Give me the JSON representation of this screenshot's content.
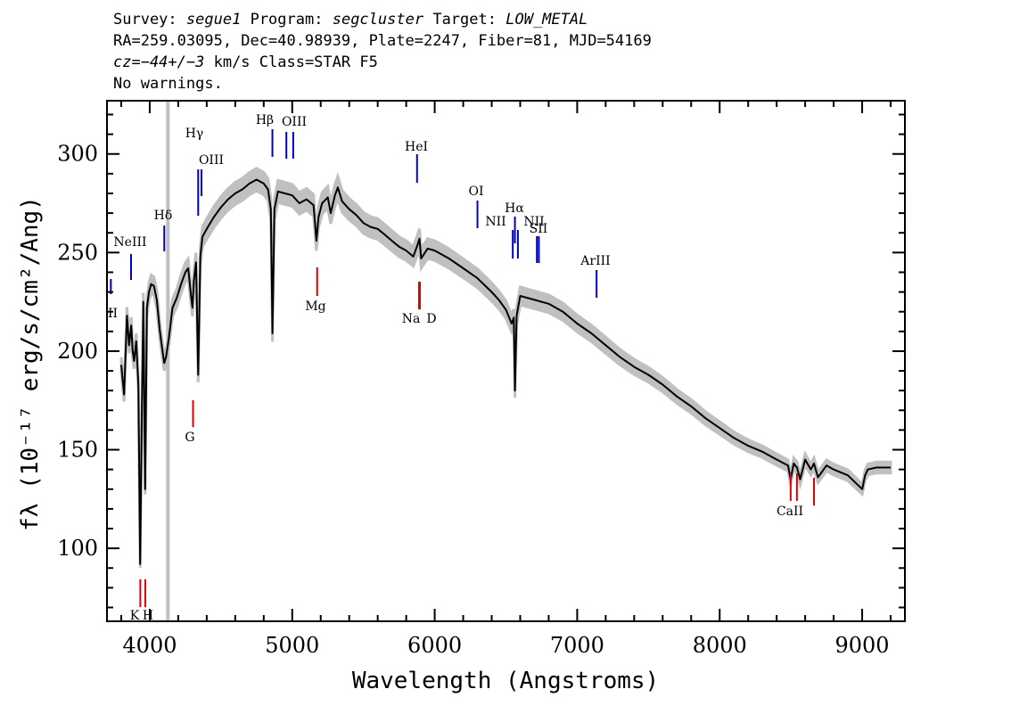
{
  "header": {
    "survey_label": "Survey:",
    "survey": "segue1",
    "program_label": "Program:",
    "program": "segcluster",
    "target_label": "Target:",
    "target": "LOW_METAL",
    "line2": "RA=259.03095, Dec=40.98939, Plate=2247, Fiber=81, MJD=54169",
    "cz": "cz=−44+/−3",
    "cz_rest": " km/s Class=STAR F5",
    "line4": "No warnings."
  },
  "chart_data": {
    "type": "line",
    "xlabel": "Wavelength (Angstroms)",
    "ylabel": "fλ (10⁻¹⁷ erg/s/cm²/Ang)",
    "xlim": [
      3700,
      9300
    ],
    "ylim": [
      63,
      327
    ],
    "x_ticks": [
      4000,
      5000,
      6000,
      7000,
      8000,
      9000
    ],
    "y_ticks": [
      100,
      150,
      200,
      250,
      300
    ],
    "masked_band": [
      4115,
      4140
    ],
    "spectrum": {
      "x": [
        3800,
        3820,
        3840,
        3855,
        3870,
        3880,
        3890,
        3905,
        3920,
        3933,
        3945,
        3955,
        3968,
        3980,
        3995,
        4010,
        4030,
        4050,
        4070,
        4090,
        4102,
        4115,
        4135,
        4160,
        4190,
        4220,
        4250,
        4270,
        4290,
        4300,
        4310,
        4325,
        4340,
        4355,
        4370,
        4400,
        4450,
        4500,
        4550,
        4600,
        4650,
        4700,
        4750,
        4800,
        4830,
        4850,
        4861,
        4875,
        4900,
        4950,
        5000,
        5050,
        5100,
        5150,
        5170,
        5185,
        5210,
        5250,
        5270,
        5300,
        5320,
        5350,
        5400,
        5450,
        5500,
        5550,
        5600,
        5650,
        5700,
        5750,
        5800,
        5850,
        5880,
        5893,
        5905,
        5950,
        6000,
        6100,
        6200,
        6300,
        6400,
        6450,
        6500,
        6540,
        6555,
        6563,
        6575,
        6600,
        6700,
        6800,
        6900,
        7000,
        7100,
        7200,
        7300,
        7400,
        7500,
        7600,
        7700,
        7800,
        7900,
        8000,
        8100,
        8200,
        8300,
        8400,
        8480,
        8498,
        8520,
        8542,
        8565,
        8600,
        8640,
        8662,
        8690,
        8750,
        8800,
        8900,
        9000,
        9020,
        9040,
        9100,
        9200
      ],
      "y": [
        193,
        178,
        218,
        203,
        213,
        200,
        195,
        205,
        183,
        92,
        172,
        225,
        130,
        222,
        230,
        234,
        233,
        226,
        211,
        200,
        194,
        197,
        207,
        222,
        227,
        234,
        240,
        242,
        228,
        222,
        236,
        245,
        188,
        248,
        258,
        262,
        268,
        273,
        277,
        280,
        282,
        285,
        287,
        285,
        282,
        272,
        209,
        272,
        281,
        280,
        279,
        275,
        277,
        274,
        256,
        268,
        275,
        278,
        270,
        279,
        283,
        276,
        272,
        269,
        265,
        263,
        262,
        259,
        256,
        253,
        251,
        248,
        254,
        257,
        247,
        252,
        251,
        247,
        242,
        237,
        230,
        226,
        221,
        214,
        217,
        180,
        218,
        228,
        226,
        224,
        220,
        214,
        209,
        203,
        197,
        192,
        188,
        183,
        177,
        172,
        166,
        161,
        156,
        152,
        149,
        145,
        142,
        135,
        143,
        141,
        135,
        145,
        140,
        143,
        136,
        142,
        140,
        137,
        130,
        137,
        140,
        141,
        141
      ]
    },
    "emission_lines": [
      {
        "label": "",
        "wavelength": 3727
      },
      {
        "label": "NeIII",
        "wavelength": 3869
      },
      {
        "label": "Hδ",
        "wavelength": 4102
      },
      {
        "label": "Hγ",
        "wavelength": 4340
      },
      {
        "label": "OIII",
        "wavelength": 4363
      },
      {
        "label": "Hβ",
        "wavelength": 4861
      },
      {
        "label": "OIII",
        "wavelength": 4959
      },
      {
        "label": "OIII",
        "wavelength": 5007
      },
      {
        "label": "HeI",
        "wavelength": 5876
      },
      {
        "label": "OI",
        "wavelength": 6300
      },
      {
        "label": "NII",
        "wavelength": 6548
      },
      {
        "label": "Hα",
        "wavelength": 6563
      },
      {
        "label": "NII",
        "wavelength": 6584
      },
      {
        "label": "SII",
        "wavelength": 6717
      },
      {
        "label": "SII",
        "wavelength": 6731
      },
      {
        "label": "ArIII",
        "wavelength": 7136
      }
    ],
    "absorption_lines": [
      {
        "label": "K",
        "wavelength": 3934
      },
      {
        "label": "H",
        "wavelength": 3969
      },
      {
        "label": "G",
        "wavelength": 4304
      },
      {
        "label": "Mg",
        "wavelength": 5175
      },
      {
        "label": "Na",
        "wavelength": 5890
      },
      {
        "label": "D",
        "wavelength": 5896
      },
      {
        "label": "CaII",
        "wavelength": 8498
      },
      {
        "label": "",
        "wavelength": 8542
      },
      {
        "label": "",
        "wavelength": 8662
      }
    ],
    "colors": {
      "spectrum": "#000000",
      "noise_band": "#c0c0c0",
      "emission": "#0000cc",
      "absorption": "#dd0000"
    }
  }
}
